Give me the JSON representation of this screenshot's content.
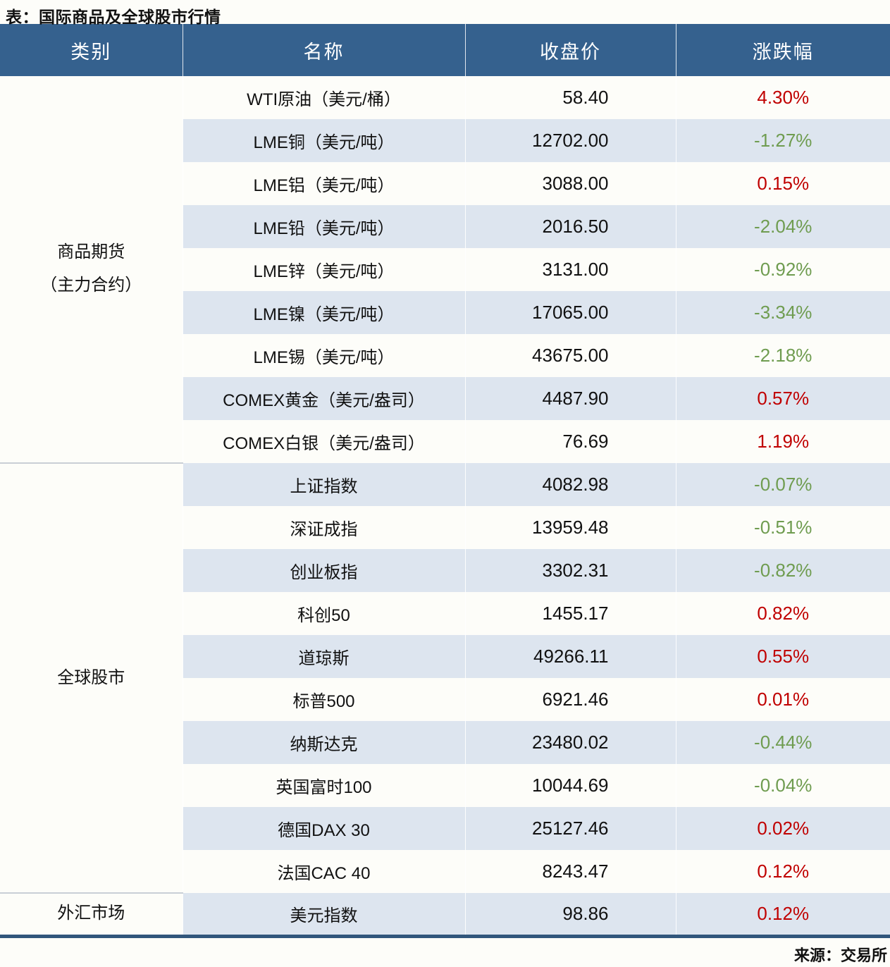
{
  "page_title": "表：国际商品及全球股市行情",
  "source_note": "来源：交易所",
  "colors": {
    "header_bg": "#35618E",
    "header_text": "#FFFFFF",
    "stripe_bg": "#DDE5EF",
    "row_bg": "#FDFDF9",
    "up_color": "#C00000",
    "down_color": "#6F9C50",
    "bottom_border": "#31567C",
    "section_divider": "#C9CFD6"
  },
  "table": {
    "columns": [
      "类别",
      "名称",
      "收盘价",
      "涨跌幅"
    ],
    "sections": [
      {
        "category_lines": [
          "商品期货",
          "（主力合约）"
        ],
        "rows": [
          {
            "name": "WTI原油（美元/桶）",
            "close": "58.40",
            "change": "4.30%",
            "trend": "up"
          },
          {
            "name": "LME铜（美元/吨）",
            "close": "12702.00",
            "change": "-1.27%",
            "trend": "down"
          },
          {
            "name": "LME铝（美元/吨）",
            "close": "3088.00",
            "change": "0.15%",
            "trend": "up"
          },
          {
            "name": "LME铅（美元/吨）",
            "close": "2016.50",
            "change": "-2.04%",
            "trend": "down"
          },
          {
            "name": "LME锌（美元/吨）",
            "close": "3131.00",
            "change": "-0.92%",
            "trend": "down"
          },
          {
            "name": "LME镍（美元/吨）",
            "close": "17065.00",
            "change": "-3.34%",
            "trend": "down"
          },
          {
            "name": "LME锡（美元/吨）",
            "close": "43675.00",
            "change": "-2.18%",
            "trend": "down"
          },
          {
            "name": "COMEX黄金（美元/盎司）",
            "close": "4487.90",
            "change": "0.57%",
            "trend": "up"
          },
          {
            "name": "COMEX白银（美元/盎司）",
            "close": "76.69",
            "change": "1.19%",
            "trend": "up"
          }
        ]
      },
      {
        "category_lines": [
          "全球股市"
        ],
        "rows": [
          {
            "name": "上证指数",
            "close": "4082.98",
            "change": "-0.07%",
            "trend": "down"
          },
          {
            "name": "深证成指",
            "close": "13959.48",
            "change": "-0.51%",
            "trend": "down"
          },
          {
            "name": "创业板指",
            "close": "3302.31",
            "change": "-0.82%",
            "trend": "down"
          },
          {
            "name": "科创50",
            "close": "1455.17",
            "change": "0.82%",
            "trend": "up"
          },
          {
            "name": "道琼斯",
            "close": "49266.11",
            "change": "0.55%",
            "trend": "up"
          },
          {
            "name": "标普500",
            "close": "6921.46",
            "change": "0.01%",
            "trend": "up"
          },
          {
            "name": "纳斯达克",
            "close": "23480.02",
            "change": "-0.44%",
            "trend": "down"
          },
          {
            "name": "英国富时100",
            "close": "10044.69",
            "change": "-0.04%",
            "trend": "down"
          },
          {
            "name": "德国DAX 30",
            "close": "25127.46",
            "change": "0.02%",
            "trend": "up"
          },
          {
            "name": "法国CAC 40",
            "close": "8243.47",
            "change": "0.12%",
            "trend": "up"
          }
        ]
      },
      {
        "category_lines": [
          "外汇市场"
        ],
        "rows": [
          {
            "name": "美元指数",
            "close": "98.86",
            "change": "0.12%",
            "trend": "up"
          }
        ]
      }
    ]
  },
  "chart_data": {
    "type": "table",
    "title": "表：国际商品及全球股市行情",
    "source": "来源：交易所",
    "columns": [
      "类别",
      "名称",
      "收盘价",
      "涨跌幅"
    ],
    "rows": [
      [
        "商品期货（主力合约）",
        "WTI原油（美元/桶）",
        58.4,
        "4.30%"
      ],
      [
        "商品期货（主力合约）",
        "LME铜（美元/吨）",
        12702.0,
        "-1.27%"
      ],
      [
        "商品期货（主力合约）",
        "LME铝（美元/吨）",
        3088.0,
        "0.15%"
      ],
      [
        "商品期货（主力合约）",
        "LME铅（美元/吨）",
        2016.5,
        "-2.04%"
      ],
      [
        "商品期货（主力合约）",
        "LME锌（美元/吨）",
        3131.0,
        "-0.92%"
      ],
      [
        "商品期货（主力合约）",
        "LME镍（美元/吨）",
        17065.0,
        "-3.34%"
      ],
      [
        "商品期货（主力合约）",
        "LME锡（美元/吨）",
        43675.0,
        "-2.18%"
      ],
      [
        "商品期货（主力合约）",
        "COMEX黄金（美元/盎司）",
        4487.9,
        "0.57%"
      ],
      [
        "商品期货（主力合约）",
        "COMEX白银（美元/盎司）",
        76.69,
        "1.19%"
      ],
      [
        "全球股市",
        "上证指数",
        4082.98,
        "-0.07%"
      ],
      [
        "全球股市",
        "深证成指",
        13959.48,
        "-0.51%"
      ],
      [
        "全球股市",
        "创业板指",
        3302.31,
        "-0.82%"
      ],
      [
        "全球股市",
        "科创50",
        1455.17,
        "0.82%"
      ],
      [
        "全球股市",
        "道琼斯",
        49266.11,
        "0.55%"
      ],
      [
        "全球股市",
        "标普500",
        6921.46,
        "0.01%"
      ],
      [
        "全球股市",
        "纳斯达克",
        23480.02,
        "-0.44%"
      ],
      [
        "全球股市",
        "英国富时100",
        10044.69,
        "-0.04%"
      ],
      [
        "全球股市",
        "德国DAX 30",
        25127.46,
        "0.02%"
      ],
      [
        "全球股市",
        "法国CAC 40",
        8243.47,
        "0.12%"
      ],
      [
        "外汇市场",
        "美元指数",
        98.86,
        "0.12%"
      ]
    ],
    "legend_note": "red = up (涨), green = down (跌)"
  }
}
